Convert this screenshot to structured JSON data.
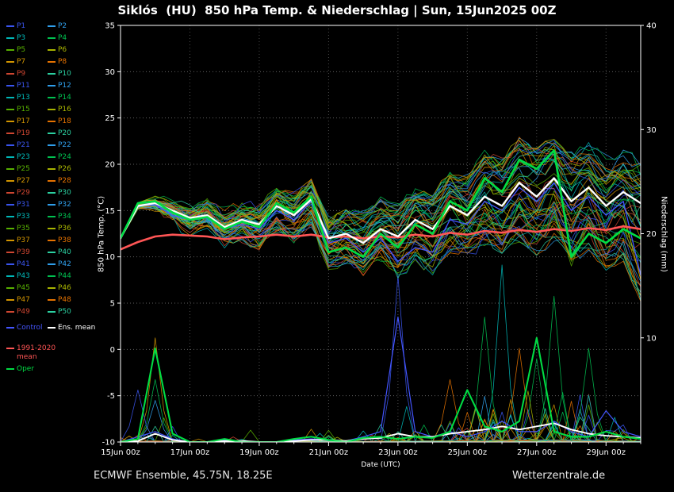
{
  "title": "Siklós  (HU)  850 hPa Temp. & Niederschlag | Sun, 15Jun2025 00Z",
  "footer": {
    "left": "ECMWF Ensemble, 45.75N, 18.25E",
    "right": "Wetterzentrale.de"
  },
  "legend": {
    "members": [
      "P1",
      "P2",
      "P3",
      "P4",
      "P5",
      "P6",
      "P7",
      "P8",
      "P9",
      "P10",
      "P11",
      "P12",
      "P13",
      "P14",
      "P15",
      "P16",
      "P17",
      "P18",
      "P19",
      "P20",
      "P21",
      "P22",
      "P23",
      "P24",
      "P25",
      "P26",
      "P27",
      "P28",
      "P29",
      "P30",
      "P31",
      "P32",
      "P33",
      "P34",
      "P35",
      "P36",
      "P37",
      "P38",
      "P39",
      "P40",
      "P41",
      "P42",
      "P43",
      "P44",
      "P45",
      "P46",
      "P47",
      "P48",
      "P49",
      "P50"
    ],
    "member_palette": [
      "#3a55ee",
      "#2f9eea",
      "#00b7b7",
      "#00c050",
      "#58b000",
      "#a8b400",
      "#d29500",
      "#e57200",
      "#cf4631",
      "#2bd0a0"
    ],
    "specials": [
      {
        "id": "control",
        "label": "Control",
        "color": "#4455ff"
      },
      {
        "id": "ens-mean",
        "label": "Ens. mean",
        "color": "#ffffff"
      },
      {
        "id": "clim-mean",
        "label": "1991-2020 mean",
        "label_line1": "1991-2020",
        "label_line2": "mean",
        "color": "#ff5555"
      },
      {
        "id": "oper",
        "label": "Oper",
        "color": "#00dd44"
      }
    ]
  },
  "chart_data": {
    "type": "line",
    "x": {
      "label": "Date (UTC)",
      "tick_labels": [
        "15Jun 00z",
        "17Jun 00z",
        "19Jun 00z",
        "21Jun 00z",
        "23Jun 00z",
        "25Jun 00z",
        "27Jun 00z",
        "29Jun 00z"
      ],
      "tick_hours": [
        0,
        48,
        96,
        144,
        192,
        240,
        288,
        336
      ],
      "minor_tick_hours": 12,
      "max_hours": 360
    },
    "y_left": {
      "label": "850 hPa Temp. (°C)",
      "min": -10,
      "max": 35,
      "ticks": [
        35,
        30,
        25,
        20,
        15,
        10,
        5,
        0,
        -5,
        -10
      ]
    },
    "y_right": {
      "label": "Niederschlag (mm)",
      "min": 0,
      "max": 40,
      "ticks": [
        40,
        30,
        20,
        10
      ]
    },
    "time_step_hours": 12,
    "series": {
      "ens_mean": {
        "name": "Ens. mean",
        "color": "#ffffff",
        "width": 2.4,
        "temp": [
          12.0,
          15.5,
          15.8,
          15.0,
          14.2,
          14.5,
          13.2,
          14.0,
          13.5,
          15.5,
          14.5,
          16.2,
          12.0,
          12.5,
          11.5,
          13.0,
          12.2,
          14.0,
          13.0,
          15.5,
          14.5,
          16.5,
          15.5,
          18.0,
          16.5,
          18.5,
          16.0,
          17.5,
          15.5,
          17.0,
          15.8
        ],
        "precip": [
          0,
          0.1,
          0.8,
          0.2,
          0,
          0,
          0.1,
          0.1,
          0,
          0,
          0.1,
          0.2,
          0.2,
          0.1,
          0.3,
          0.4,
          0.8,
          0.5,
          0.5,
          0.8,
          1.0,
          1.2,
          1.5,
          1.2,
          1.5,
          1.8,
          1.2,
          0.8,
          0.6,
          0.5,
          0.4
        ]
      },
      "oper": {
        "name": "Oper",
        "color": "#00dd44",
        "width": 2.6,
        "temp": [
          12.0,
          15.8,
          16.0,
          14.8,
          14.0,
          14.3,
          13.0,
          13.8,
          13.2,
          15.8,
          14.8,
          16.5,
          10.5,
          11.0,
          10.0,
          12.5,
          11.0,
          13.5,
          12.5,
          16.0,
          15.0,
          18.5,
          17.0,
          20.5,
          19.5,
          21.5,
          10.0,
          12.5,
          11.5,
          13.0,
          12.0
        ],
        "precip": [
          0,
          0.3,
          9,
          0.8,
          0,
          0,
          0.3,
          0,
          0,
          0,
          0.3,
          0.5,
          0.2,
          0,
          0.4,
          0.5,
          0.3,
          0.5,
          0.4,
          1,
          5,
          1.5,
          1,
          2,
          10,
          1,
          0.5,
          0.5,
          1,
          0.5,
          0.3
        ]
      },
      "control": {
        "name": "Control",
        "color": "#4455ff",
        "width": 1.3,
        "temp": [
          12.0,
          15.5,
          15.6,
          14.5,
          14.0,
          14.2,
          13.0,
          13.5,
          13.0,
          15.0,
          14.0,
          16.0,
          11.5,
          12.0,
          10.5,
          12.0,
          9.5,
          11.0,
          10.5,
          14.0,
          13.5,
          16.0,
          15.0,
          17.5,
          16.0,
          18.0,
          15.0,
          16.5,
          14.5,
          16.0,
          8.0
        ],
        "precip": [
          0,
          0.5,
          1,
          0.3,
          0,
          0,
          0.2,
          0,
          0,
          0,
          0.2,
          0.3,
          0.2,
          0.1,
          0.5,
          1,
          12,
          1,
          0.5,
          1,
          0.5,
          1,
          2,
          1,
          1,
          2,
          1,
          0.5,
          3,
          1,
          0.5
        ]
      },
      "clim_mean": {
        "name": "1991-2020 mean",
        "color": "#ff5555",
        "width": 2.6,
        "temp": [
          10.8,
          11.6,
          12.2,
          12.4,
          12.3,
          12.2,
          11.9,
          12.1,
          12.2,
          12.4,
          12.2,
          12.4,
          12.1,
          12.2,
          12.0,
          12.2,
          12.1,
          12.4,
          12.2,
          12.6,
          12.4,
          12.8,
          12.6,
          12.9,
          12.7,
          13.0,
          12.8,
          13.1,
          12.9,
          13.3,
          13.0
        ]
      }
    },
    "ensemble": {
      "count": 50,
      "env_min": [
        11.0,
        14.5,
        14.5,
        13.5,
        12.5,
        13.0,
        11.5,
        12.0,
        11.0,
        13.0,
        12.0,
        13.5,
        9.0,
        9.5,
        8.5,
        10.0,
        8.0,
        9.5,
        8.5,
        10.5,
        10.0,
        11.5,
        10.5,
        12.0,
        10.5,
        12.0,
        9.5,
        11.0,
        8.5,
        10.0,
        5.5
      ],
      "env_max": [
        13.0,
        16.5,
        17.0,
        16.0,
        15.5,
        16.0,
        15.0,
        15.5,
        15.5,
        17.5,
        16.5,
        18.0,
        14.0,
        15.0,
        14.5,
        16.0,
        15.5,
        17.0,
        16.5,
        19.0,
        18.5,
        21.0,
        20.5,
        22.5,
        21.5,
        22.5,
        21.0,
        22.0,
        20.5,
        21.5,
        20.0
      ],
      "precip_activity": [
        0.1,
        0.3,
        0.5,
        0.2,
        0.1,
        0.1,
        0.15,
        0.2,
        0.1,
        0.1,
        0.2,
        0.3,
        0.2,
        0.2,
        0.3,
        0.4,
        0.5,
        0.4,
        0.5,
        0.6,
        0.7,
        0.7,
        0.8,
        0.8,
        0.8,
        0.9,
        0.8,
        0.7,
        0.6,
        0.5,
        0.4
      ],
      "precip_events": [
        {
          "t": 2,
          "member": 6,
          "mm": 10
        },
        {
          "t": 2,
          "member": 13,
          "mm": 6
        },
        {
          "t": 1,
          "member": 30,
          "mm": 5
        },
        {
          "t": 2,
          "member": 41,
          "mm": 4
        },
        {
          "t": 16,
          "member": 10,
          "mm": 16
        },
        {
          "t": 19,
          "member": 27,
          "mm": 6
        },
        {
          "t": 21,
          "member": 23,
          "mm": 12
        },
        {
          "t": 22,
          "member": 12,
          "mm": 17
        },
        {
          "t": 23,
          "member": 17,
          "mm": 9
        },
        {
          "t": 24,
          "member": 3,
          "mm": 8
        },
        {
          "t": 25,
          "member": 33,
          "mm": 14
        },
        {
          "t": 27,
          "member": 43,
          "mm": 9
        }
      ]
    }
  }
}
